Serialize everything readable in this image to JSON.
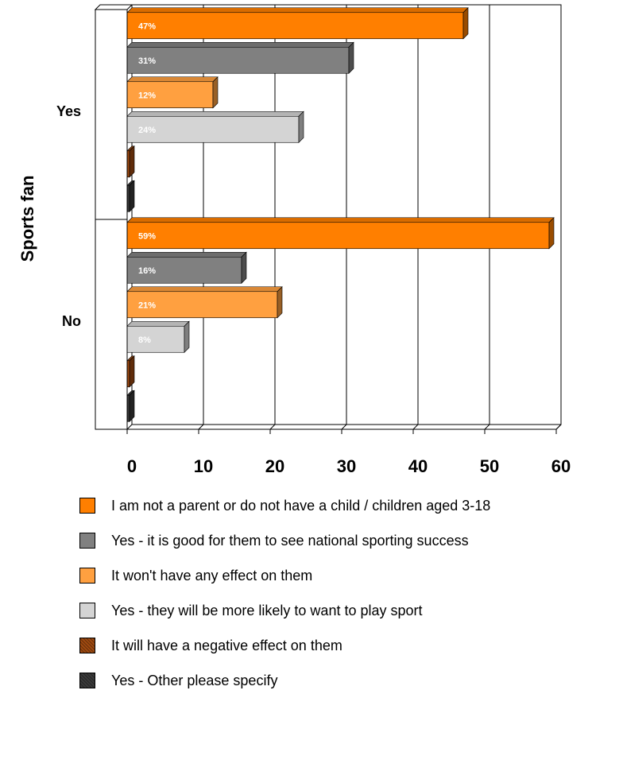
{
  "chart_data": {
    "type": "bar",
    "orientation": "horizontal",
    "title": "",
    "ylabel": "Sports fan",
    "xlabel": "",
    "categories": [
      "Yes",
      "No"
    ],
    "xlim": [
      0,
      60
    ],
    "x_ticks": [
      "0",
      "10",
      "20",
      "30",
      "40",
      "50",
      "60"
    ],
    "grid": true,
    "legend_position": "bottom",
    "series": [
      {
        "name": "I am not a parent or do not have a child / children aged 3-18",
        "color": "#ff7f00",
        "values": [
          47,
          59
        ],
        "labels": [
          "47%",
          "59%"
        ]
      },
      {
        "name": "Yes - it is good for them to see national sporting success",
        "color": "#808080",
        "values": [
          31,
          16
        ],
        "labels": [
          "31%",
          "16%"
        ]
      },
      {
        "name": "It won't have any effect on them",
        "color": "#ffa040",
        "values": [
          12,
          21
        ],
        "labels": [
          "12%",
          "21%"
        ]
      },
      {
        "name": "Yes - they will be more likely to want to play sport",
        "color": "#d4d4d4",
        "values": [
          24,
          8
        ],
        "labels": [
          "24%",
          "8%"
        ]
      },
      {
        "name": "It will have a negative effect on them",
        "color": "#a04a10",
        "values": [
          0,
          0
        ],
        "labels": [
          "",
          ""
        ]
      },
      {
        "name": "Yes - Other please specify",
        "color": "#3a3a3a",
        "values": [
          0,
          0
        ],
        "labels": [
          "",
          ""
        ]
      }
    ]
  }
}
